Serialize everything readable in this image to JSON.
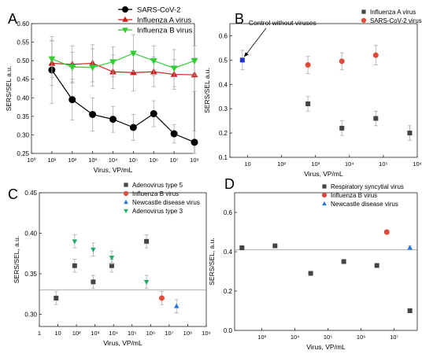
{
  "chart_data": [
    {
      "panel": "A",
      "type": "line",
      "xlabel": "Virus, VP/mL",
      "ylabel": "SERS/SEL a.u.",
      "x_scale": "log",
      "xlim": [
        1,
        100000000
      ],
      "ylim": [
        0.25,
        0.6
      ],
      "x_tick_labels": [
        "10⁰",
        "10¹",
        "10²",
        "10³",
        "10⁴",
        "10⁵",
        "10⁶",
        "10⁷",
        "10⁸"
      ],
      "y_tick_labels": [
        "0.25",
        "0.30",
        "0.35",
        "0.40",
        "0.45",
        "0.50",
        "0.55",
        "0.60"
      ],
      "legend_position": "top-right",
      "grid": false,
      "series": [
        {
          "name": "SARS-CoV-2",
          "color": "#000000",
          "marker": "circle",
          "x": [
            10,
            100,
            1000,
            10000,
            100000,
            1000000,
            10000000,
            100000000
          ],
          "y": [
            0.475,
            0.395,
            0.355,
            0.342,
            0.32,
            0.357,
            0.303,
            0.28
          ],
          "err": [
            0.09,
            0.055,
            0.045,
            0.035,
            0.035,
            0.035,
            0.025,
            0.03
          ]
        },
        {
          "name": "Influenza A virus",
          "color": "#cc2020",
          "marker": "triangle-up",
          "x": [
            10,
            100,
            1000,
            10000,
            100000,
            1000000,
            10000000,
            100000000
          ],
          "y": [
            0.493,
            0.49,
            0.493,
            0.47,
            0.468,
            0.47,
            0.463,
            0.462
          ],
          "err": [
            0.06,
            0.05,
            0.05,
            0.045,
            0.05,
            0.04,
            0.04,
            0.045
          ]
        },
        {
          "name": "Influenza B virus",
          "color": "#33cc33",
          "marker": "triangle-down",
          "x": [
            10,
            100,
            1000,
            10000,
            100000,
            1000000,
            10000000,
            100000000
          ],
          "y": [
            0.505,
            0.483,
            0.482,
            0.497,
            0.52,
            0.5,
            0.48,
            0.5
          ],
          "err": [
            0.05,
            0.04,
            0.05,
            0.04,
            0.05,
            0.04,
            0.05,
            0.04
          ]
        }
      ]
    },
    {
      "panel": "B",
      "type": "scatter",
      "xlabel": "Virus, VP/mL",
      "ylabel": "SERS/SEL a.u.",
      "x_scale": "log",
      "xlim": [
        3,
        1000000
      ],
      "ylim": [
        0.1,
        0.65
      ],
      "x_tick_labels": [
        "10",
        "10²",
        "10³",
        "10⁴",
        "10⁵",
        "10⁶"
      ],
      "y_tick_labels": [
        "0.1",
        "0.2",
        "0.3",
        "0.4",
        "0.5",
        "0.6"
      ],
      "legend_position": "top-right",
      "annotation": "Control without viruses",
      "series": [
        {
          "name": "Influenza A virus",
          "color": "#444444",
          "marker": "square",
          "x": [
            600,
            6000,
            60000,
            600000
          ],
          "y": [
            0.32,
            0.22,
            0.26,
            0.2
          ],
          "err": [
            0.03,
            0.03,
            0.03,
            0.03
          ]
        },
        {
          "name": "SARS-CoV-2 virus",
          "color": "#e04a3a",
          "marker": "circle",
          "x": [
            600,
            6000,
            60000
          ],
          "y": [
            0.48,
            0.495,
            0.52
          ],
          "err": [
            0.035,
            0.035,
            0.04
          ]
        },
        {
          "name": "",
          "color": "#2233cc",
          "marker": "square",
          "x": [
            7
          ],
          "y": [
            0.5
          ],
          "err": [
            0.04
          ]
        }
      ]
    },
    {
      "panel": "C",
      "type": "scatter",
      "xlabel": "Virus, VP/mL",
      "ylabel": "SERS/SEL, a.u.",
      "x_scale": "log",
      "xlim": [
        1,
        1000000000
      ],
      "ylim": [
        0.285,
        0.45
      ],
      "x_tick_labels": [
        "1",
        "10",
        "10²",
        "10³",
        "10⁴",
        "10⁵",
        "10⁶",
        "10⁷",
        "10⁸",
        "10⁹"
      ],
      "y_tick_labels": [
        "0.30",
        "0.35",
        "0.40",
        "0.45"
      ],
      "legend_position": "top-right",
      "reference_line": 0.33,
      "series": [
        {
          "name": "Adenovirus type 5",
          "color": "#444444",
          "marker": "square",
          "x": [
            8,
            80,
            800,
            8000,
            600000
          ],
          "y": [
            0.32,
            0.36,
            0.34,
            0.36,
            0.39
          ],
          "err": [
            0.008,
            0.008,
            0.008,
            0.008,
            0.008
          ]
        },
        {
          "name": "Influenza B virus",
          "color": "#e04a3a",
          "marker": "circle",
          "x": [
            4000000
          ],
          "y": [
            0.32
          ],
          "err": [
            0.008
          ]
        },
        {
          "name": "Newcastle disease virus",
          "color": "#2277dd",
          "marker": "triangle-up",
          "x": [
            25000000
          ],
          "y": [
            0.31
          ],
          "err": [
            0.008
          ]
        },
        {
          "name": "Adenovirus type 3",
          "color": "#22aa66",
          "marker": "triangle-down",
          "x": [
            80,
            800,
            8000,
            600000
          ],
          "y": [
            0.39,
            0.38,
            0.37,
            0.34
          ],
          "err": [
            0.008,
            0.008,
            0.008,
            0.008
          ]
        }
      ]
    },
    {
      "panel": "D",
      "type": "scatter",
      "xlabel": "Virus, VP/mL",
      "ylabel": "SERS/SEL, a.u.",
      "x_scale": "log",
      "xlim": [
        150,
        50000000
      ],
      "ylim": [
        0,
        0.7
      ],
      "x_tick_labels": [
        "10³",
        "10⁴",
        "10⁵",
        "10⁶",
        "10⁷"
      ],
      "y_tick_labels": [
        "0.0",
        "0.2",
        "0.4",
        "0.6"
      ],
      "legend_position": "top-right",
      "reference_line": 0.41,
      "series": [
        {
          "name": "Respiratory syncytial virus",
          "color": "#444444",
          "marker": "square",
          "x": [
            250,
            2500,
            30000,
            300000,
            3000000,
            30000000
          ],
          "y": [
            0.42,
            0.43,
            0.29,
            0.35,
            0.33,
            0.1
          ],
          "err": [
            0.01,
            0.01,
            0.01,
            0.01,
            0.01,
            0.01
          ]
        },
        {
          "name": "Influenza B virus",
          "color": "#e04a3a",
          "marker": "circle",
          "x": [
            6000000
          ],
          "y": [
            0.5
          ],
          "err": [
            0.01
          ]
        },
        {
          "name": "Newcastle disease virus",
          "color": "#2277dd",
          "marker": "triangle-up",
          "x": [
            30000000
          ],
          "y": [
            0.42
          ],
          "err": [
            0.01
          ]
        }
      ]
    }
  ]
}
